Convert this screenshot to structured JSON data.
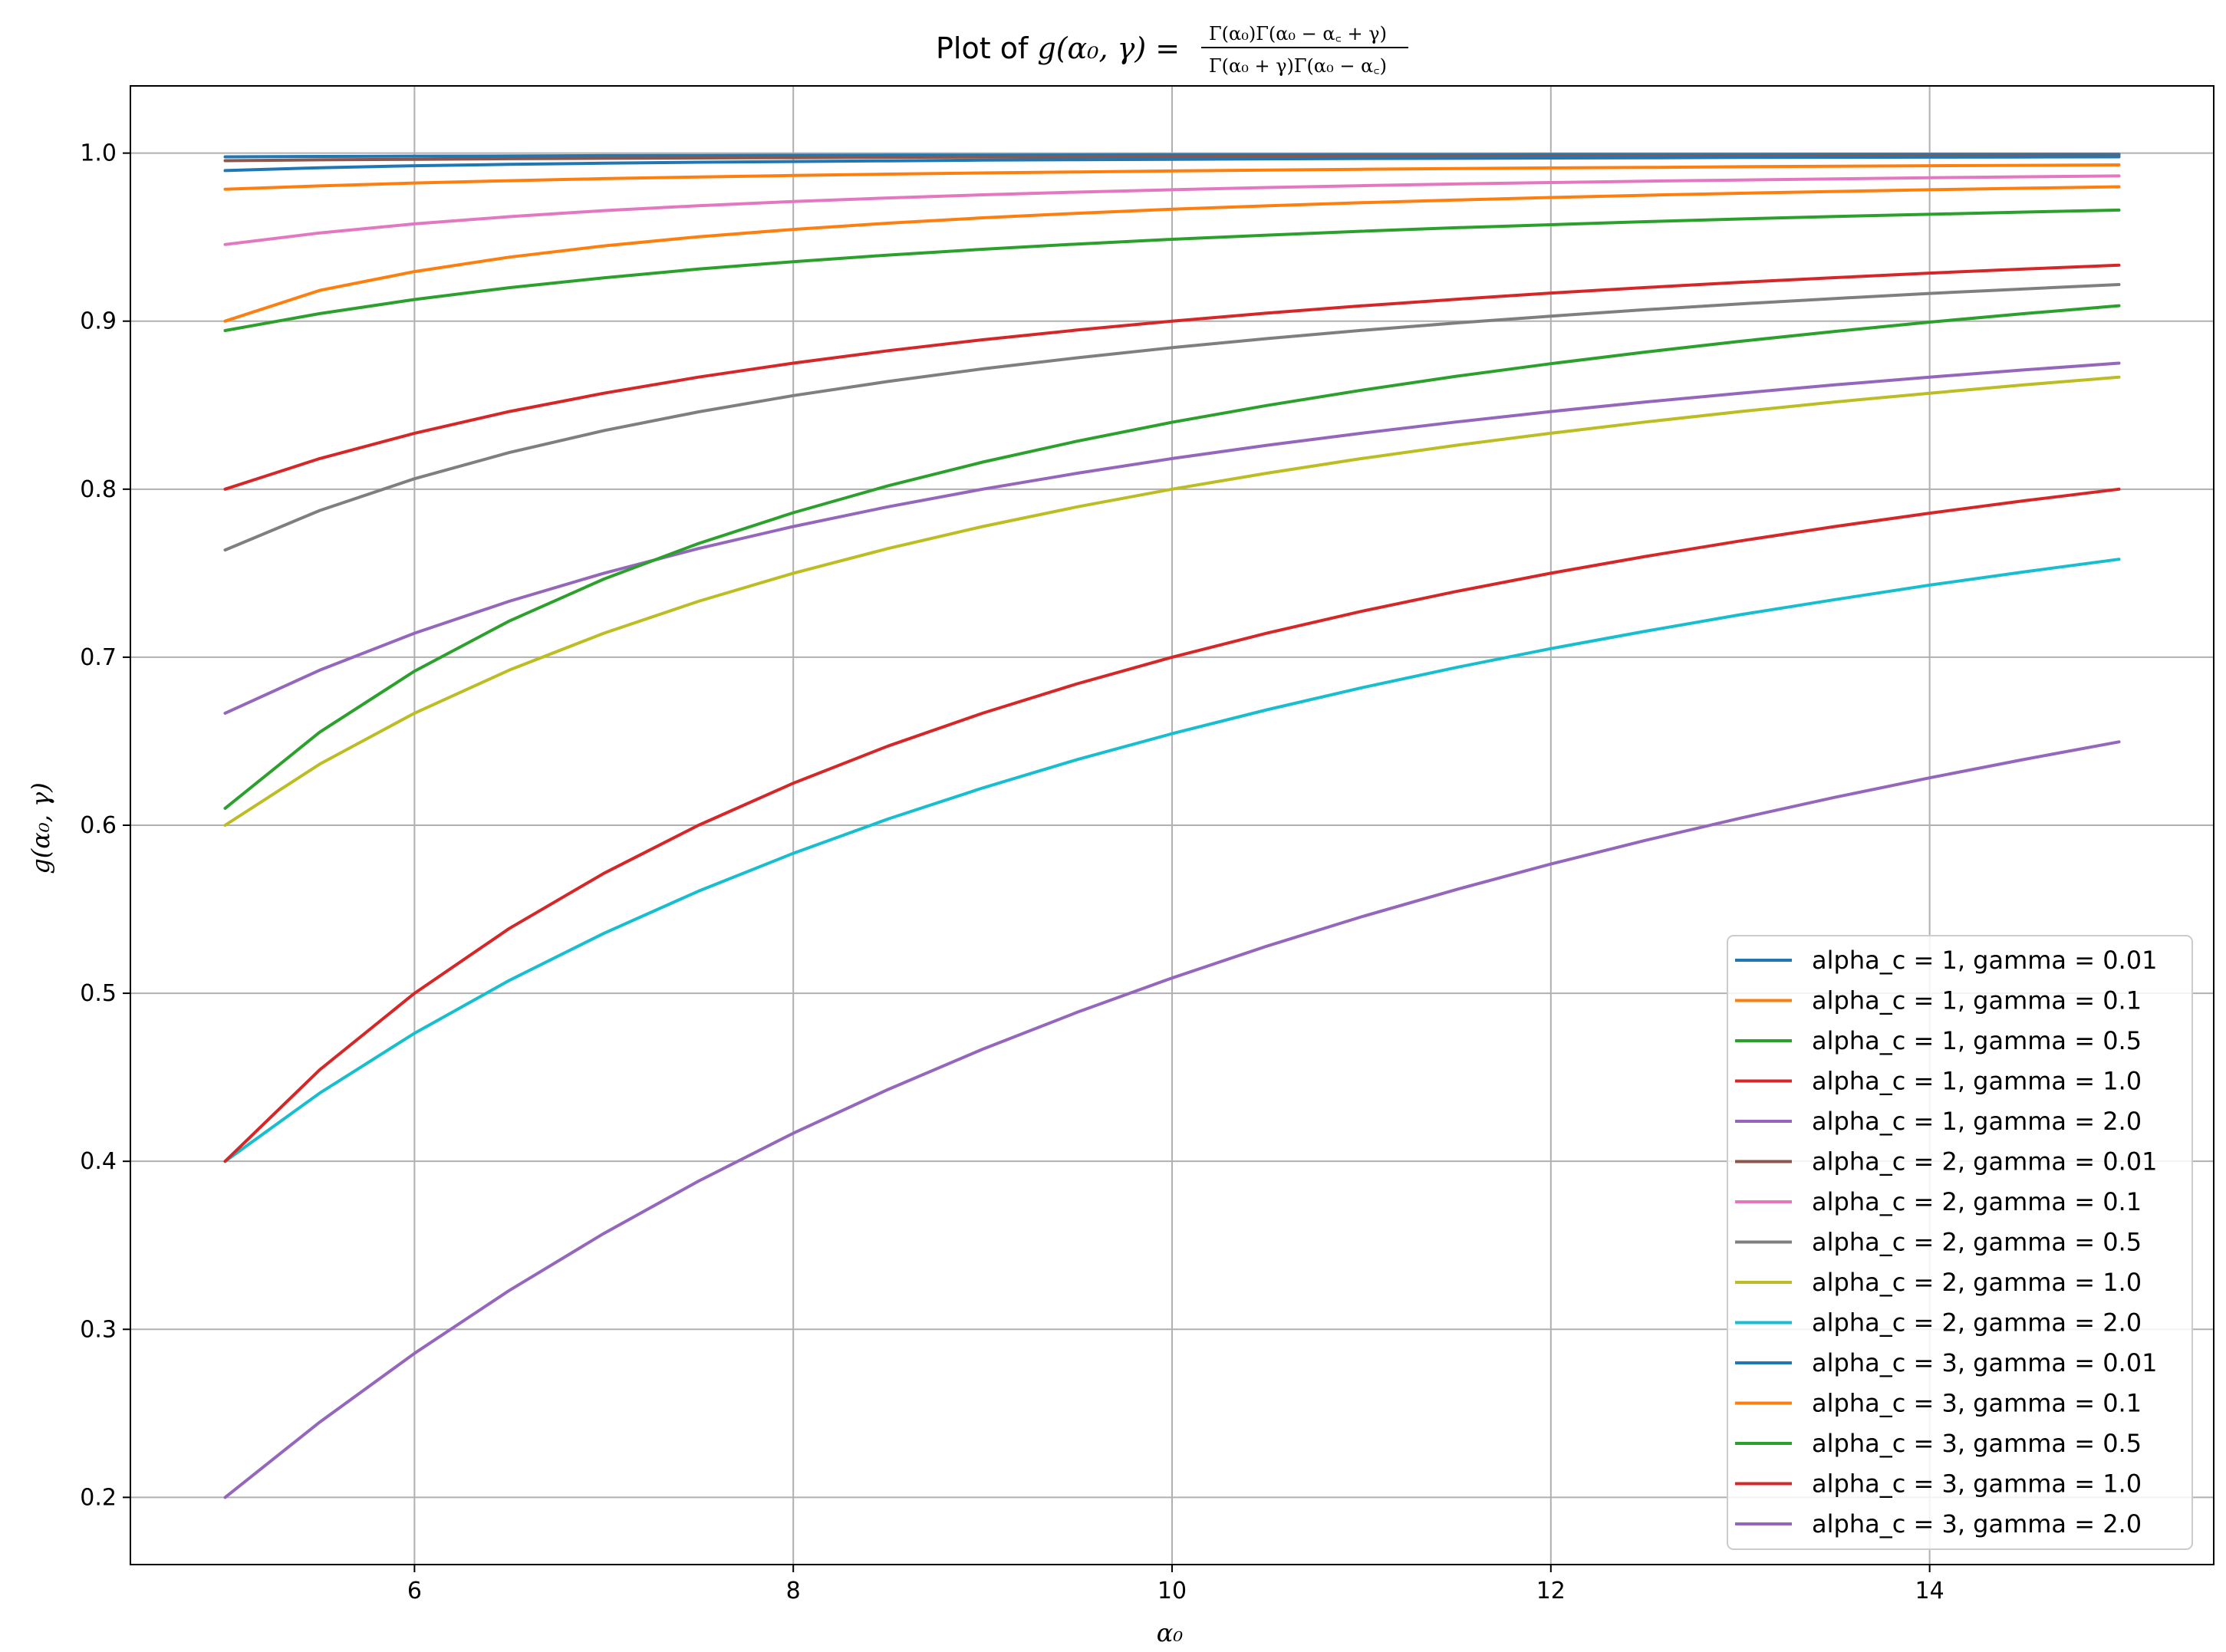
{
  "chart_data": {
    "type": "line",
    "title": {
      "prefix": "Plot of ",
      "math": "g(α₀, γ) =",
      "numerator": "Γ(α₀)Γ(α₀ − α꜀ + γ)",
      "denominator": "Γ(α₀ + γ)Γ(α₀ − α꜀)"
    },
    "xlabel": "α₀",
    "ylabel": "g(α₀, γ)",
    "xlim": [
      4.5,
      15.5
    ],
    "ylim": [
      0.16,
      1.04
    ],
    "xticks": [
      6,
      8,
      10,
      12,
      14
    ],
    "yticks": [
      0.2,
      0.3,
      0.4,
      0.5,
      0.6,
      0.7,
      0.8,
      0.9,
      1.0
    ],
    "xtick_labels": [
      "6",
      "8",
      "10",
      "12",
      "14"
    ],
    "ytick_labels": [
      "0.2",
      "0.3",
      "0.4",
      "0.5",
      "0.6",
      "0.7",
      "0.8",
      "0.9",
      "1.0"
    ],
    "grid": true,
    "legend_position": "lower-right",
    "x": [
      5,
      5.5,
      6,
      6.5,
      7,
      7.5,
      8,
      8.5,
      9,
      9.5,
      10,
      10.5,
      11,
      11.5,
      12,
      12.5,
      13,
      13.5,
      14,
      14.5,
      15
    ],
    "series": [
      {
        "name": "alpha_c = 1, gamma = 0.01",
        "color": "#1f77b4",
        "values": [
          0.9978,
          0.998,
          0.9982,
          0.9983,
          0.9985,
          0.9986,
          0.9987,
          0.9988,
          0.9988,
          0.9989,
          0.999,
          0.999,
          0.9991,
          0.9991,
          0.9992,
          0.9992,
          0.9992,
          0.9993,
          0.9993,
          0.9993,
          0.9993
        ]
      },
      {
        "name": "alpha_c = 1, gamma = 0.1",
        "color": "#ff7f0e",
        "values": [
          0.9785,
          0.9805,
          0.9822,
          0.9836,
          0.9848,
          0.9858,
          0.9867,
          0.9875,
          0.9882,
          0.9888,
          0.9894,
          0.9899,
          0.9904,
          0.9908,
          0.9912,
          0.9915,
          0.9919,
          0.9922,
          0.9925,
          0.9927,
          0.993
        ]
      },
      {
        "name": "alpha_c = 1, gamma = 0.5",
        "color": "#2ca02c",
        "values": [
          0.8944,
          0.9045,
          0.9129,
          0.9199,
          0.9258,
          0.931,
          0.9354,
          0.9393,
          0.9428,
          0.9459,
          0.9487,
          0.9512,
          0.9535,
          0.9556,
          0.9574,
          0.9592,
          0.9608,
          0.9623,
          0.9636,
          0.9649,
          0.9661
        ]
      },
      {
        "name": "alpha_c = 1, gamma = 1.0",
        "color": "#d62728",
        "values": [
          0.8,
          0.8182,
          0.8333,
          0.8462,
          0.8571,
          0.8667,
          0.875,
          0.8824,
          0.8889,
          0.8947,
          0.9,
          0.9048,
          0.9091,
          0.913,
          0.9167,
          0.92,
          0.9231,
          0.9259,
          0.9286,
          0.931,
          0.9333
        ]
      },
      {
        "name": "alpha_c = 1, gamma = 2.0",
        "color": "#9467bd",
        "values": [
          0.6667,
          0.6923,
          0.7143,
          0.7333,
          0.75,
          0.7647,
          0.7778,
          0.7895,
          0.8,
          0.8095,
          0.8182,
          0.8261,
          0.8333,
          0.84,
          0.8462,
          0.8519,
          0.8571,
          0.8621,
          0.8667,
          0.871,
          0.875
        ]
      },
      {
        "name": "alpha_c = 2, gamma = 0.01",
        "color": "#8c564b",
        "values": [
          0.9955,
          0.996,
          0.9963,
          0.9967,
          0.9969,
          0.9971,
          0.9973,
          0.9975,
          0.9977,
          0.9978,
          0.9979,
          0.998,
          0.9981,
          0.9982,
          0.9983,
          0.9984,
          0.9984,
          0.9985,
          0.9985,
          0.9986,
          0.9986
        ]
      },
      {
        "name": "alpha_c = 2, gamma = 0.1",
        "color": "#e377c2",
        "values": [
          0.9456,
          0.9525,
          0.9579,
          0.9622,
          0.9658,
          0.9687,
          0.9712,
          0.9733,
          0.9752,
          0.9768,
          0.9782,
          0.9795,
          0.9806,
          0.9816,
          0.9825,
          0.9833,
          0.984,
          0.9847,
          0.9853,
          0.9859,
          0.9864
        ]
      },
      {
        "name": "alpha_c = 2, gamma = 0.5",
        "color": "#7f7f7f",
        "values": [
          0.7638,
          0.7873,
          0.8062,
          0.8218,
          0.8349,
          0.846,
          0.8557,
          0.8641,
          0.8716,
          0.8782,
          0.8842,
          0.8896,
          0.8945,
          0.8989,
          0.903,
          0.9068,
          0.9103,
          0.9135,
          0.9165,
          0.9192,
          0.9218
        ]
      },
      {
        "name": "alpha_c = 2, gamma = 1.0",
        "color": "#bcbd22",
        "values": [
          0.6,
          0.6364,
          0.6667,
          0.6923,
          0.7143,
          0.7333,
          0.75,
          0.7647,
          0.7778,
          0.7895,
          0.8,
          0.8095,
          0.8182,
          0.8261,
          0.8333,
          0.84,
          0.8462,
          0.8519,
          0.8571,
          0.8621,
          0.8667
        ]
      },
      {
        "name": "alpha_c = 2, gamma = 2.0",
        "color": "#17becf",
        "values": [
          0.4,
          0.4406,
          0.4762,
          0.5076,
          0.5357,
          0.5608,
          0.5833,
          0.6037,
          0.6222,
          0.6391,
          0.6545,
          0.6687,
          0.6818,
          0.6939,
          0.7051,
          0.7155,
          0.7253,
          0.7343,
          0.7429,
          0.7508,
          0.7583
        ]
      },
      {
        "name": "alpha_c = 3, gamma = 0.01",
        "color": "#1f77b4",
        "values": [
          0.9896,
          0.9913,
          0.9925,
          0.9933,
          0.994,
          0.9946,
          0.995,
          0.9954,
          0.9958,
          0.9961,
          0.9963,
          0.9966,
          0.9968,
          0.9969,
          0.9971,
          0.9972,
          0.9974,
          0.9975,
          0.9976,
          0.9977,
          0.9978
        ]
      },
      {
        "name": "alpha_c = 3, gamma = 0.1",
        "color": "#ff7f0e",
        "values": [
          0.9,
          0.9183,
          0.9295,
          0.9381,
          0.9448,
          0.9502,
          0.9546,
          0.9583,
          0.9615,
          0.9642,
          0.9666,
          0.9686,
          0.9705,
          0.9721,
          0.9736,
          0.9749,
          0.9761,
          0.9772,
          0.9782,
          0.9791,
          0.98
        ]
      },
      {
        "name": "alpha_c = 3, gamma = 0.5",
        "color": "#2ca02c",
        "values": [
          0.6101,
          0.6554,
          0.6917,
          0.7215,
          0.7465,
          0.7677,
          0.786,
          0.802,
          0.8161,
          0.8286,
          0.8398,
          0.8498,
          0.8589,
          0.8672,
          0.8747,
          0.8816,
          0.888,
          0.8939,
          0.8994,
          0.9045,
          0.9092
        ]
      },
      {
        "name": "alpha_c = 3, gamma = 1.0",
        "color": "#d62728",
        "values": [
          0.4,
          0.4545,
          0.5,
          0.5385,
          0.5714,
          0.6,
          0.625,
          0.6471,
          0.6667,
          0.6842,
          0.7,
          0.7143,
          0.7273,
          0.7391,
          0.75,
          0.76,
          0.7692,
          0.7778,
          0.7857,
          0.7931,
          0.8
        ]
      },
      {
        "name": "alpha_c = 3, gamma = 2.0",
        "color": "#9467bd",
        "values": [
          0.2,
          0.2448,
          0.2857,
          0.3231,
          0.3571,
          0.3882,
          0.4167,
          0.4427,
          0.4667,
          0.4887,
          0.5091,
          0.528,
          0.5455,
          0.5617,
          0.5769,
          0.591,
          0.6042,
          0.6166,
          0.6282,
          0.6392,
          0.6496
        ]
      }
    ]
  }
}
